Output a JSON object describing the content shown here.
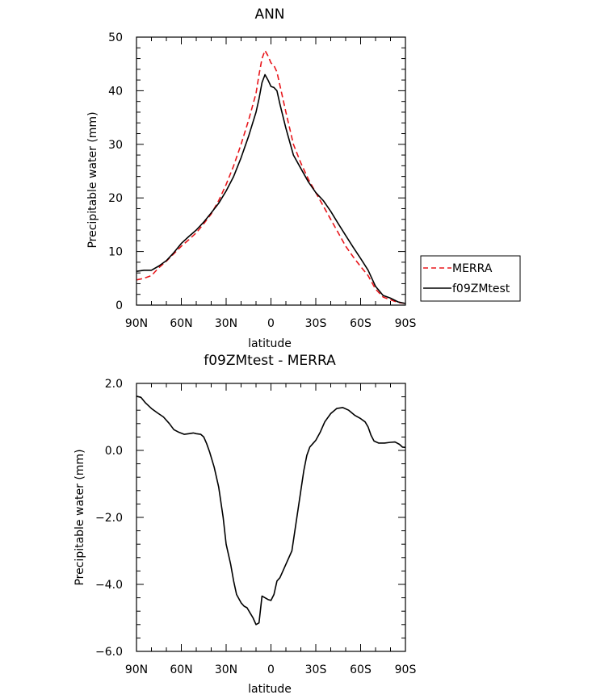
{
  "chart_data": [
    {
      "type": "line",
      "title": "ANN",
      "xlabel": "latitude",
      "ylabel": "Precipitable water (mm)",
      "xlim": [
        90,
        -90
      ],
      "ylim": [
        0,
        50
      ],
      "x_ticks": [
        90,
        60,
        30,
        0,
        -30,
        -60,
        -90
      ],
      "x_tick_labels": [
        "90N",
        "60N",
        "30N",
        "0",
        "30S",
        "60S",
        "90S"
      ],
      "y_ticks": [
        0,
        10,
        20,
        30,
        40,
        50
      ],
      "y_tick_labels": [
        "0",
        "10",
        "20",
        "30",
        "40",
        "50"
      ],
      "legend_position": "right",
      "series": [
        {
          "name": "MERRA",
          "color": "#e8161b",
          "dash": "dashed",
          "points": [
            [
              90,
              4.7
            ],
            [
              85,
              5.0
            ],
            [
              80,
              5.5
            ],
            [
              75,
              7.0
            ],
            [
              70,
              8.2
            ],
            [
              65,
              9.6
            ],
            [
              60,
              11.0
            ],
            [
              55,
              12.2
            ],
            [
              50,
              13.5
            ],
            [
              45,
              15.2
            ],
            [
              40,
              17.0
            ],
            [
              35,
              19.5
            ],
            [
              30,
              22.5
            ],
            [
              25,
              26.0
            ],
            [
              20,
              30.0
            ],
            [
              15,
              34.5
            ],
            [
              10,
              39.5
            ],
            [
              8,
              43.0
            ],
            [
              6,
              46.0
            ],
            [
              4,
              47.5
            ],
            [
              2,
              46.5
            ],
            [
              0,
              45.2
            ],
            [
              -2,
              44.7
            ],
            [
              -4,
              43.5
            ],
            [
              -6,
              41.0
            ],
            [
              -10,
              36.0
            ],
            [
              -15,
              30.0
            ],
            [
              -20,
              26.5
            ],
            [
              -25,
              23.5
            ],
            [
              -30,
              21.0
            ],
            [
              -35,
              18.5
            ],
            [
              -40,
              16.0
            ],
            [
              -45,
              13.5
            ],
            [
              -50,
              11.0
            ],
            [
              -55,
              9.0
            ],
            [
              -60,
              7.2
            ],
            [
              -65,
              5.5
            ],
            [
              -70,
              3.0
            ],
            [
              -75,
              1.5
            ],
            [
              -80,
              1.0
            ],
            [
              -85,
              0.5
            ],
            [
              -90,
              0.3
            ]
          ]
        },
        {
          "name": "f09ZMtest",
          "color": "#000000",
          "dash": "solid",
          "points": [
            [
              90,
              6.3
            ],
            [
              85,
              6.5
            ],
            [
              80,
              6.5
            ],
            [
              75,
              7.3
            ],
            [
              70,
              8.3
            ],
            [
              65,
              9.8
            ],
            [
              60,
              11.5
            ],
            [
              55,
              12.8
            ],
            [
              50,
              14.0
            ],
            [
              45,
              15.5
            ],
            [
              40,
              17.2
            ],
            [
              35,
              19.0
            ],
            [
              30,
              21.3
            ],
            [
              25,
              24.0
            ],
            [
              20,
              27.5
            ],
            [
              15,
              31.5
            ],
            [
              10,
              36.0
            ],
            [
              8,
              38.5
            ],
            [
              6,
              41.5
            ],
            [
              4,
              43.0
            ],
            [
              2,
              42.0
            ],
            [
              0,
              40.8
            ],
            [
              -2,
              40.6
            ],
            [
              -4,
              40.0
            ],
            [
              -6,
              37.5
            ],
            [
              -10,
              33.0
            ],
            [
              -15,
              28.0
            ],
            [
              -20,
              25.5
            ],
            [
              -25,
              23.0
            ],
            [
              -30,
              21.0
            ],
            [
              -35,
              19.5
            ],
            [
              -40,
              17.5
            ],
            [
              -45,
              15.2
            ],
            [
              -50,
              13.0
            ],
            [
              -55,
              10.8
            ],
            [
              -60,
              8.7
            ],
            [
              -65,
              6.5
            ],
            [
              -70,
              3.5
            ],
            [
              -75,
              1.8
            ],
            [
              -80,
              1.3
            ],
            [
              -85,
              0.6
            ],
            [
              -90,
              0.3
            ]
          ]
        }
      ]
    },
    {
      "type": "line",
      "title": "f09ZMtest - MERRA",
      "xlabel": "latitude",
      "ylabel": "Precipitable water (mm)",
      "xlim": [
        90,
        -90
      ],
      "ylim": [
        -6,
        2
      ],
      "x_ticks": [
        90,
        60,
        30,
        0,
        -30,
        -60,
        -90
      ],
      "x_tick_labels": [
        "90N",
        "60N",
        "30N",
        "0",
        "30S",
        "60S",
        "90S"
      ],
      "y_ticks": [
        -6,
        -4,
        -2,
        0,
        2
      ],
      "y_tick_labels": [
        "−6.0",
        "−4.0",
        "−2.0",
        "0.0",
        "2.0"
      ],
      "series": [
        {
          "color": "#000000",
          "dash": "solid",
          "points": [
            [
              90,
              1.62
            ],
            [
              87,
              1.58
            ],
            [
              84,
              1.42
            ],
            [
              80,
              1.25
            ],
            [
              76,
              1.12
            ],
            [
              72,
              1.0
            ],
            [
              68,
              0.8
            ],
            [
              65,
              0.62
            ],
            [
              62,
              0.55
            ],
            [
              58,
              0.48
            ],
            [
              55,
              0.5
            ],
            [
              52,
              0.52
            ],
            [
              50,
              0.5
            ],
            [
              47,
              0.48
            ],
            [
              45,
              0.4
            ],
            [
              43,
              0.2
            ],
            [
              41,
              -0.05
            ],
            [
              38,
              -0.5
            ],
            [
              35,
              -1.1
            ],
            [
              32,
              -2.0
            ],
            [
              30,
              -2.8
            ],
            [
              27,
              -3.4
            ],
            [
              25,
              -3.9
            ],
            [
              23,
              -4.3
            ],
            [
              20,
              -4.55
            ],
            [
              18,
              -4.65
            ],
            [
              16,
              -4.7
            ],
            [
              14,
              -4.85
            ],
            [
              12,
              -5.0
            ],
            [
              10,
              -5.2
            ],
            [
              8,
              -5.15
            ],
            [
              6,
              -4.35
            ],
            [
              4,
              -4.4
            ],
            [
              2,
              -4.45
            ],
            [
              0,
              -4.48
            ],
            [
              -2,
              -4.3
            ],
            [
              -4,
              -3.9
            ],
            [
              -6,
              -3.8
            ],
            [
              -8,
              -3.6
            ],
            [
              -10,
              -3.4
            ],
            [
              -14,
              -3.0
            ],
            [
              -16,
              -2.4
            ],
            [
              -18,
              -1.8
            ],
            [
              -20,
              -1.2
            ],
            [
              -22,
              -0.6
            ],
            [
              -24,
              -0.15
            ],
            [
              -26,
              0.1
            ],
            [
              -28,
              0.2
            ],
            [
              -30,
              0.3
            ],
            [
              -33,
              0.55
            ],
            [
              -36,
              0.85
            ],
            [
              -40,
              1.1
            ],
            [
              -44,
              1.25
            ],
            [
              -48,
              1.28
            ],
            [
              -52,
              1.2
            ],
            [
              -56,
              1.05
            ],
            [
              -60,
              0.95
            ],
            [
              -63,
              0.85
            ],
            [
              -65,
              0.7
            ],
            [
              -67,
              0.45
            ],
            [
              -69,
              0.28
            ],
            [
              -72,
              0.22
            ],
            [
              -76,
              0.22
            ],
            [
              -80,
              0.24
            ],
            [
              -83,
              0.25
            ],
            [
              -86,
              0.18
            ],
            [
              -88,
              0.1
            ],
            [
              -90,
              0.09
            ]
          ]
        }
      ]
    }
  ]
}
